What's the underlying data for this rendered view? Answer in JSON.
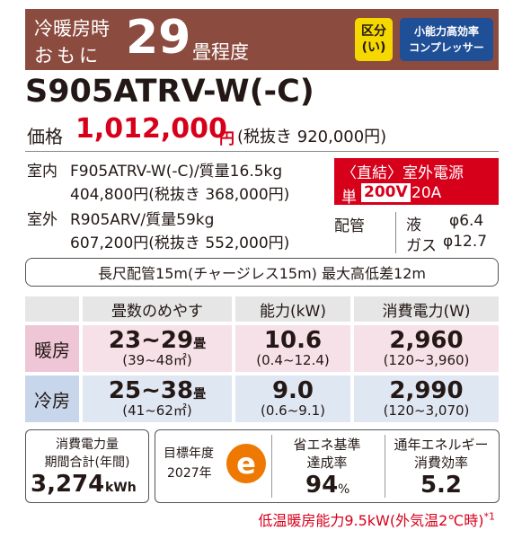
{
  "header": {
    "line1": "冷暖房時",
    "line2": "おもに",
    "tatami": "29",
    "tatami_suffix": "畳程度",
    "badge_class": [
      "区分",
      "(い)"
    ],
    "badge_compressor": [
      "小能力高効率",
      "コンプレッサー"
    ]
  },
  "model": "S905ATRV-W(-C)",
  "price": {
    "label": "価格",
    "value": "1,012,000",
    "unit": "円",
    "tax_excluded": "(税抜き 920,000円)"
  },
  "indoor": {
    "label": "室内",
    "spec": "F905ATRV-W(-C)/質量16.5kg",
    "price": "404,800円(税抜き 368,000円)"
  },
  "outdoor": {
    "label": "室外",
    "spec": "R905ARV/質量59kg",
    "price": "607,200円(税抜き 552,000円)"
  },
  "power": {
    "title": "〈直結〉室外電源",
    "phase": "単",
    "voltage": "200V",
    "current": "20A"
  },
  "piping": {
    "label": "配管",
    "liquid": "液",
    "liquid_size": "φ6.4",
    "gas": "ガス",
    "gas_size": "φ12.7"
  },
  "long_pipe": "長尺配管15m(チャージレス15m) 最大高低差12m",
  "table": {
    "headers": [
      "畳数のめやす",
      "能力(kW)",
      "消費電力(W)"
    ],
    "rows": [
      {
        "label": "暖房",
        "tatami": "23~29",
        "tatami_unit": "畳",
        "area": "(39~48㎡)",
        "capacity": "10.6",
        "capacity_range": "(0.4~12.4)",
        "power": "2,960",
        "power_range": "(120~3,960)"
      },
      {
        "label": "冷房",
        "tatami": "25~38",
        "tatami_unit": "畳",
        "area": "(41~62㎡)",
        "capacity": "9.0",
        "capacity_range": "(0.6~9.1)",
        "power": "2,990",
        "power_range": "(120~3,070)"
      }
    ]
  },
  "energy": {
    "label1": "消費電力量",
    "label2": "期間合計(年間)",
    "value": "3,274",
    "unit": "kWh"
  },
  "target": {
    "label1": "目標年度",
    "label2": "2027年",
    "mark": "e"
  },
  "achievement": {
    "label1": "省エネ基準",
    "label2": "達成率",
    "value": "94",
    "unit": "%"
  },
  "apf": {
    "label1": "通年エネルギー",
    "label2": "消費効率",
    "value": "5.2"
  },
  "footnote": {
    "text": "低温暖房能力9.5kW(外気温2℃時)",
    "mark": "*1"
  }
}
